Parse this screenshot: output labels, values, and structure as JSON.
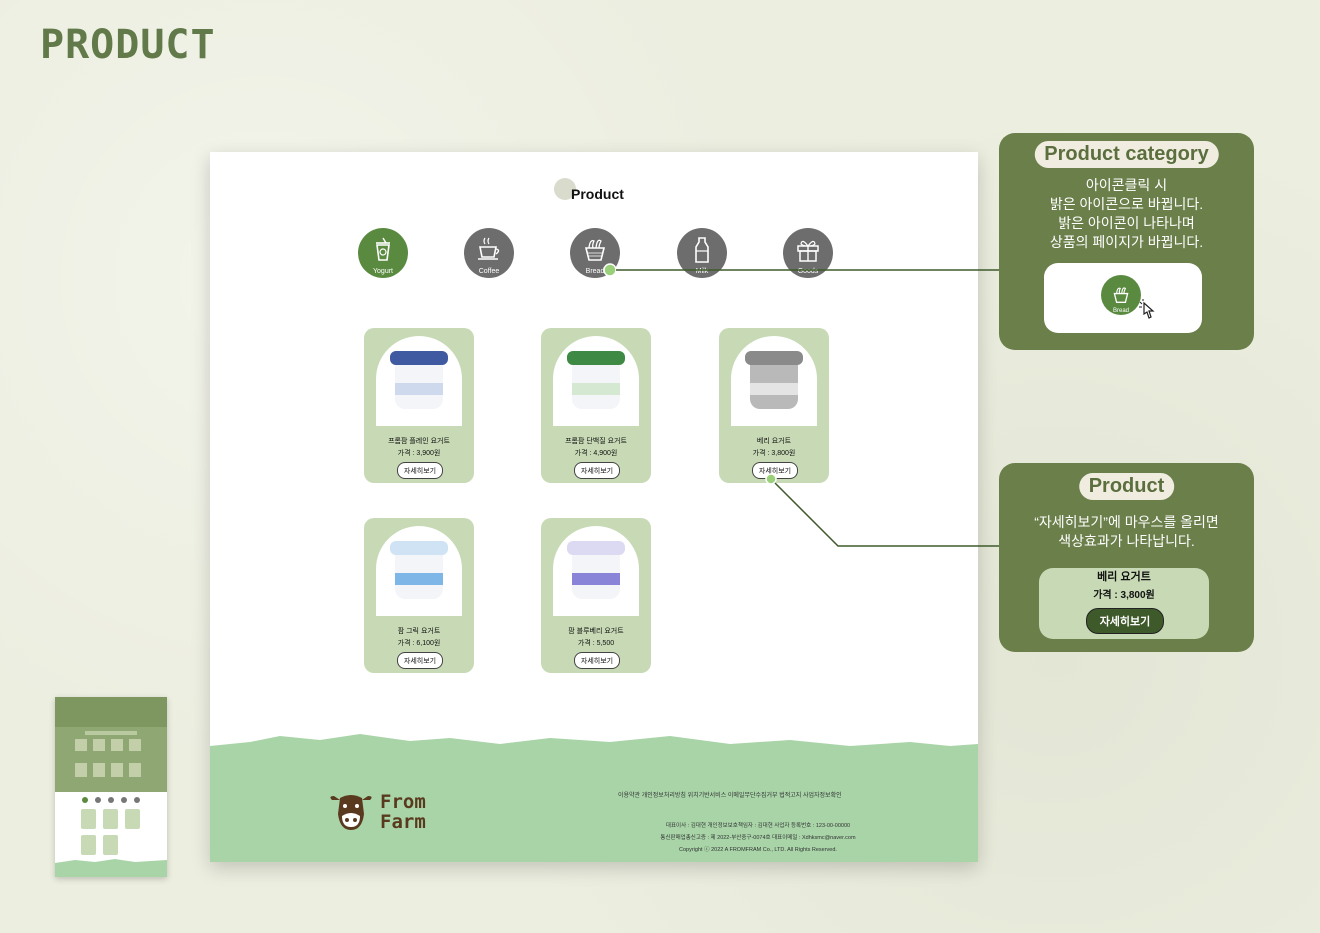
{
  "heading": "PRODUCT",
  "sheet": {
    "title": "Product",
    "categories": [
      {
        "label": "Yogurt",
        "icon": "yogurt-icon",
        "active": true
      },
      {
        "label": "Coffee",
        "icon": "coffee-icon",
        "active": false
      },
      {
        "label": "Bread",
        "icon": "bread-icon",
        "active": false
      },
      {
        "label": "Milk",
        "icon": "milk-icon",
        "active": false
      },
      {
        "label": "Goods",
        "icon": "gift-icon",
        "active": false
      }
    ],
    "products": [
      {
        "name": "프롬팜 플레인 요거트",
        "price": "가격 : 3,900원",
        "button": "자세히보기",
        "lid_color": "#3f5aa0"
      },
      {
        "name": "프롬팜 단백질 요거트",
        "price": "가격 : 4,900원",
        "button": "자세히보기",
        "lid_color": "#3e8a44"
      },
      {
        "name": "베리 요거트",
        "price": "가격 : 3,800원",
        "button": "자세히보기",
        "lid_color": "#8a8a8a"
      },
      {
        "name": "팜 그릭 요거트",
        "price": "가격 : 6,100원",
        "button": "자세히보기",
        "lid_color": "#7fb6e8"
      },
      {
        "name": "팜 블루베리 요거트",
        "price": "가격 : 5,500",
        "button": "자세히보기",
        "lid_color": "#8a84d8"
      }
    ]
  },
  "footer": {
    "logo_line1": "From",
    "logo_line2": "Farm",
    "links": "이용약관  개인정보처리방침  위치기반서비스  이메일무단수집거부  법적고지  사업자정보확인",
    "info1": "대표이사 : 김대현  개인정보보호책임자 : 김대현  사업자 등록번호 : 123-00-00000",
    "info2": "통신판매업총신고증 : 제 2022-부산중구-0074호  대표이메일 : Xdhksmc@naver.com",
    "copyright": "Copyright ⓒ 2022 A FROMFRAM Co., LTD. All Rights Reserved."
  },
  "panel_category": {
    "pill": "Product category",
    "lines": [
      "아이콘클릭 시",
      "밝은 아이콘으로 바뀝니다.",
      "밝은 아이콘이 나타나며",
      "상품의 페이지가 바뀝니다."
    ],
    "demo_label": "Bread"
  },
  "panel_product": {
    "pill": "Product",
    "lines": [
      "“자세히보기”에 마우스를 올리면",
      "색상효과가 나타납니다."
    ],
    "demo_name": "베리 요거트",
    "demo_price": "가격 : 3,800원",
    "demo_button": "자세히보기"
  },
  "colors": {
    "accent": "#6b7f4a",
    "card": "#c7dab5",
    "footer": "#a8d4a8",
    "active_icon": "#5a8a40"
  }
}
